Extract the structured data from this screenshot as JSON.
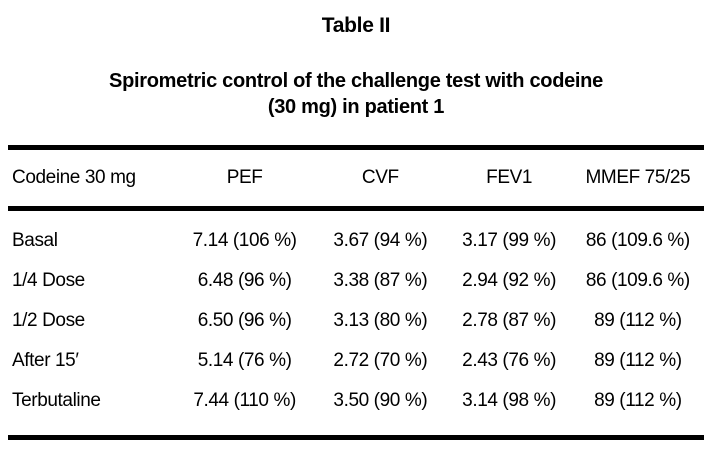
{
  "doc": {
    "title": "Table II",
    "subtitle_line1": "Spirometric control of the challenge test with codeine",
    "subtitle_line2": "(30 mg) in patient 1",
    "colors": {
      "background": "#ffffff",
      "text": "#000000",
      "rule": "#000000"
    },
    "columns": [
      "Codeine 30 mg",
      "PEF",
      "CVF",
      "FEV1",
      "MMEF 75/25"
    ],
    "rows": [
      [
        "Basal",
        "7.14 (106 %)",
        "3.67 (94 %)",
        "3.17 (99 %)",
        "86 (109.6 %)"
      ],
      [
        "1/4 Dose",
        "6.48 (96 %)",
        "3.38 (87 %)",
        "2.94 (92 %)",
        "86 (109.6 %)"
      ],
      [
        "1/2 Dose",
        "6.50 (96 %)",
        "3.13 (80 %)",
        "2.78 (87 %)",
        "89 (112 %)"
      ],
      [
        "After 15′",
        "5.14 (76 %)",
        "2.72 (70 %)",
        "2.43 (76 %)",
        "89 (112 %)"
      ],
      [
        "Terbutaline",
        "7.44 (110 %)",
        "3.50 (90 %)",
        "3.14 (98 %)",
        "89 (112 %)"
      ]
    ]
  }
}
